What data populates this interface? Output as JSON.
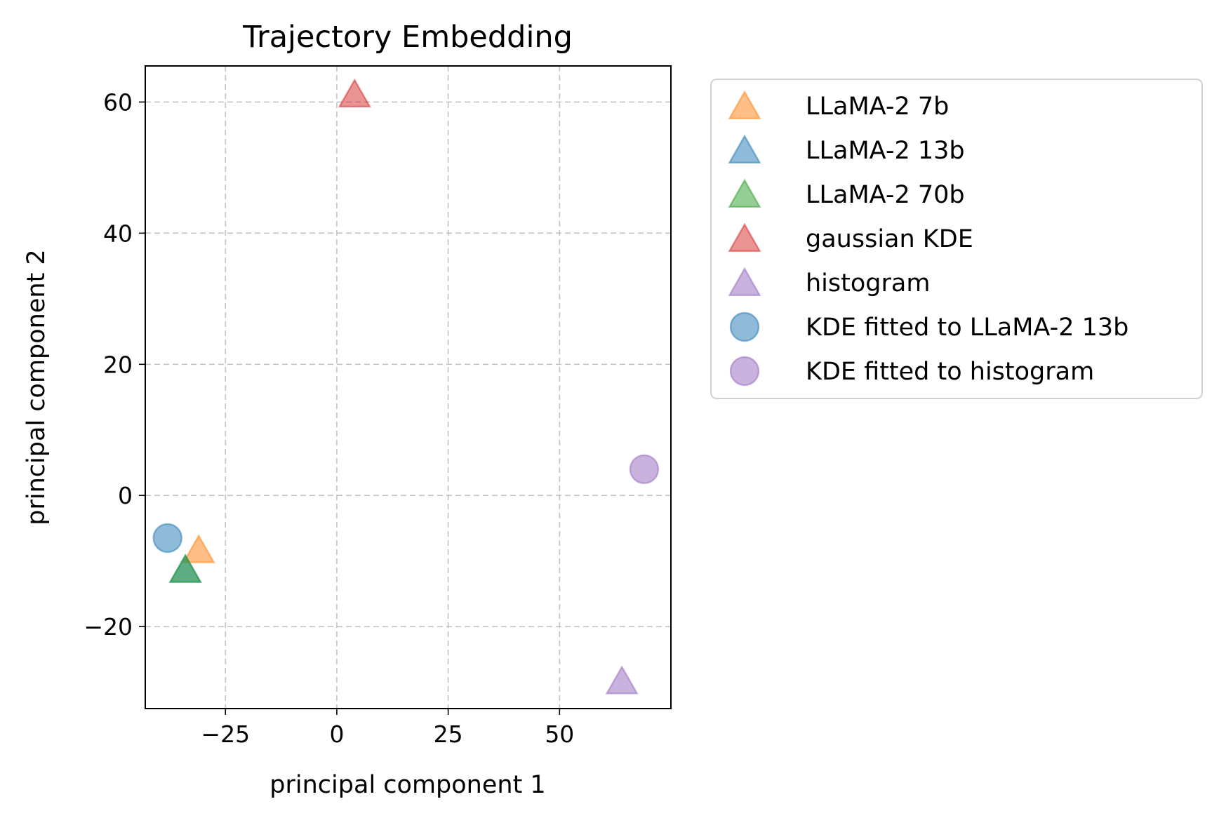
{
  "chart_data": {
    "type": "scatter",
    "title": "Trajectory Embedding",
    "xlabel": "principal component 1",
    "ylabel": "principal component 2",
    "xlim": [
      -43,
      75
    ],
    "ylim": [
      -32.5,
      65.5
    ],
    "xticks": [
      -25,
      0,
      25,
      50
    ],
    "xtick_labels": [
      "−25",
      "0",
      "25",
      "50"
    ],
    "yticks": [
      -20,
      0,
      20,
      40,
      60
    ],
    "ytick_labels": [
      "−20",
      "0",
      "20",
      "40",
      "60"
    ],
    "grid": true,
    "legend_position": "outside-right-top",
    "series": [
      {
        "name": "LLaMA-2 7b",
        "marker": "triangle",
        "color": "#ff7f0e",
        "points": [
          {
            "x": -31,
            "y": -8.5
          }
        ]
      },
      {
        "name": "LLaMA-2 13b",
        "marker": "triangle",
        "color": "#1f77b4",
        "points": [
          {
            "x": -34,
            "y": -11.5
          }
        ]
      },
      {
        "name": "LLaMA-2 70b",
        "marker": "triangle",
        "color": "#2ca02c",
        "points": [
          {
            "x": -34,
            "y": -11.5
          }
        ]
      },
      {
        "name": "gaussian KDE",
        "marker": "triangle",
        "color": "#d62728",
        "points": [
          {
            "x": 4,
            "y": 61
          }
        ]
      },
      {
        "name": "histogram",
        "marker": "triangle",
        "color": "#9467bd",
        "points": [
          {
            "x": 64,
            "y": -28.5
          }
        ]
      },
      {
        "name": "KDE fitted to LLaMA-2 13b",
        "marker": "circle",
        "color": "#1f77b4",
        "points": [
          {
            "x": -38,
            "y": -6.5
          }
        ]
      },
      {
        "name": "KDE fitted to histogram",
        "marker": "circle",
        "color": "#9467bd",
        "points": [
          {
            "x": 69,
            "y": 4
          }
        ]
      }
    ]
  }
}
